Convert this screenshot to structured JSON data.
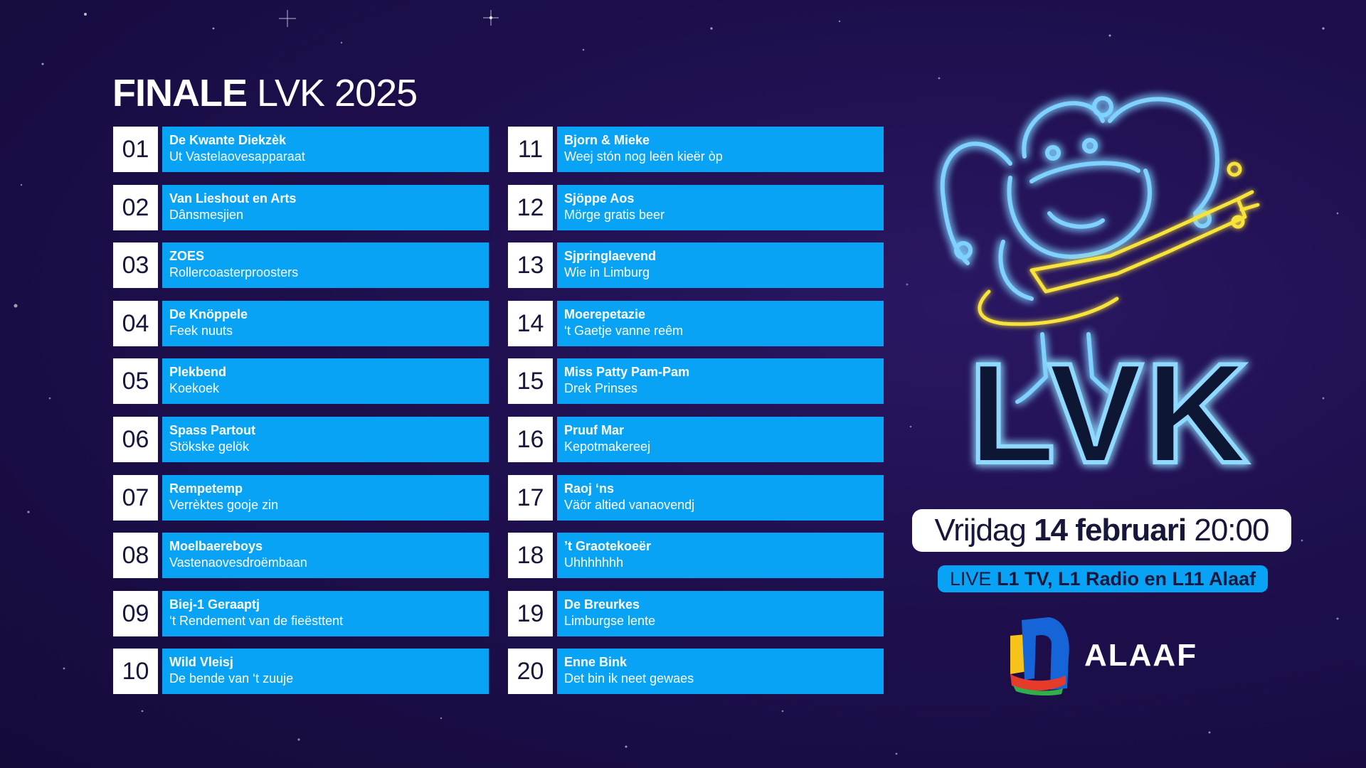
{
  "title": {
    "bold": "FINALE",
    "light": "LVK 2025"
  },
  "entries": [
    {
      "num": "01",
      "artist": "De Kwante Diekzèk",
      "song": "Ut Vastelaovesapparaat"
    },
    {
      "num": "02",
      "artist": "Van Lieshout en Arts",
      "song": "Dânsmesjien"
    },
    {
      "num": "03",
      "artist": "ZOES",
      "song": "Rollercoasterproosters"
    },
    {
      "num": "04",
      "artist": "De Knöppele",
      "song": "Feek nuuts"
    },
    {
      "num": "05",
      "artist": "Plekbend",
      "song": "Koekoek"
    },
    {
      "num": "06",
      "artist": "Spass Partout",
      "song": "Stökske gelök"
    },
    {
      "num": "07",
      "artist": "Rempetemp",
      "song": "Verrèktes gooje zin"
    },
    {
      "num": "08",
      "artist": "Moelbaereboys",
      "song": "Vastenaovesdroëmbaan"
    },
    {
      "num": "09",
      "artist": "Biej-1 Geraaptj",
      "song": "‘t Rendement van de fieësttent"
    },
    {
      "num": "10",
      "artist": "Wild Vleisj",
      "song": "De bende van ‘t zuuje"
    },
    {
      "num": "11",
      "artist": "Bjorn & Mieke",
      "song": "Weej stón nog leën kieër òp"
    },
    {
      "num": "12",
      "artist": "Sjöppe Aos",
      "song": "Mörge gratis beer"
    },
    {
      "num": "13",
      "artist": "Sjpringlaevend",
      "song": "Wie in Limburg"
    },
    {
      "num": "14",
      "artist": "Moerepetazie",
      "song": "‘t Gaetje vanne reêm"
    },
    {
      "num": "15",
      "artist": "Miss Patty Pam-Pam",
      "song": "Drek Prinses"
    },
    {
      "num": "16",
      "artist": "Pruuf Mar",
      "song": "Kepotmakereej"
    },
    {
      "num": "17",
      "artist": "Raoj ‘ns",
      "song": "Väör altied vanaovendj"
    },
    {
      "num": "18",
      "artist": "’t Graotekoeër",
      "song": "Uhhhhhhh"
    },
    {
      "num": "19",
      "artist": "De Breurkes",
      "song": "Limburgse lente"
    },
    {
      "num": "20",
      "artist": "Enne Bink",
      "song": "Det bin ik neet gewaes"
    }
  ],
  "logo": {
    "text": "LVK"
  },
  "date": {
    "day": "Vrijdag",
    "date": "14 februari",
    "time": "20:00"
  },
  "live": {
    "prefix": "LIVE",
    "channels": "L1 TV, L1 Radio en L11 Alaaf"
  },
  "brand": {
    "name": "ALAAF"
  },
  "colors": {
    "background": "#1e0f4d",
    "accent": "#08a3f5",
    "number_box": "#ffffff",
    "dark_text": "#16173a",
    "neon_blue": "#5fc6ff",
    "neon_yellow": "#f7e33a"
  }
}
